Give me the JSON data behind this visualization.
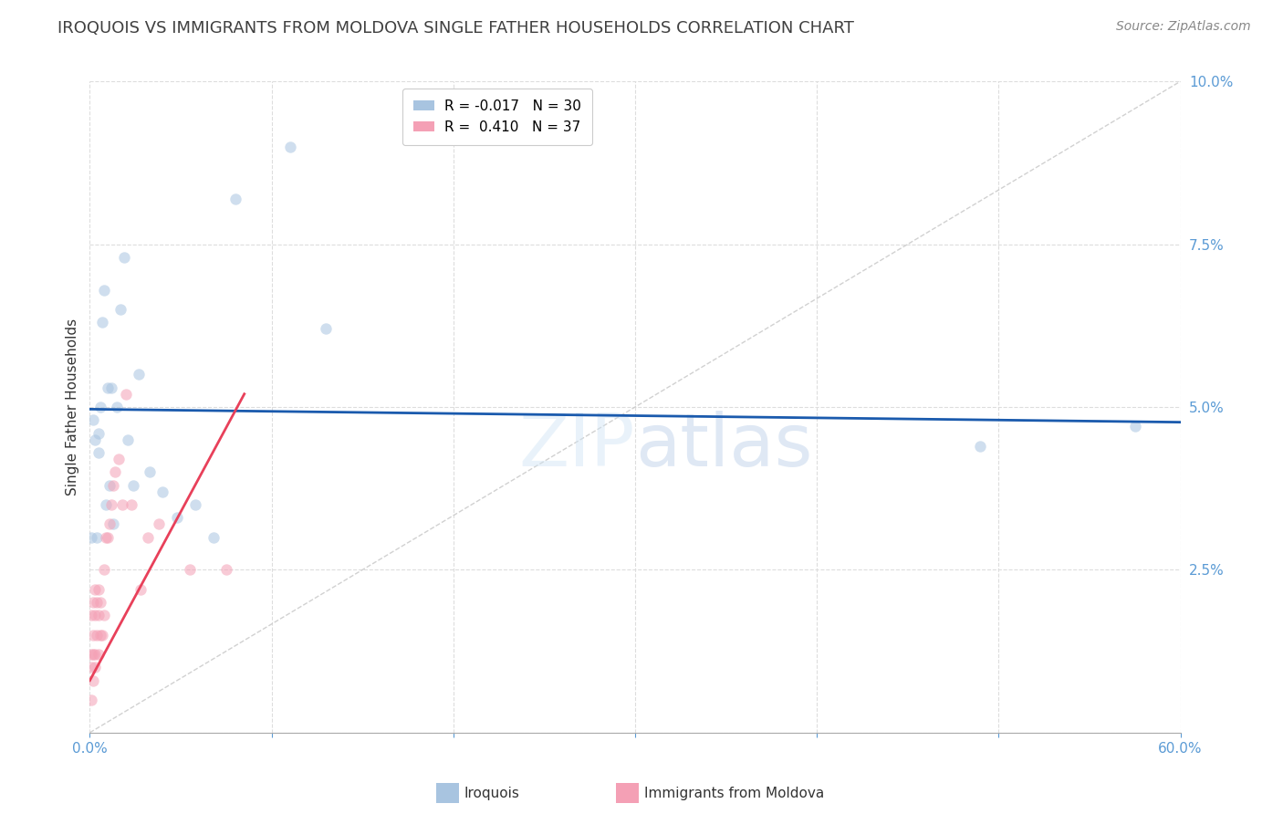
{
  "title": "IROQUOIS VS IMMIGRANTS FROM MOLDOVA SINGLE FATHER HOUSEHOLDS CORRELATION CHART",
  "source": "Source: ZipAtlas.com",
  "ylabel": "Single Father Households",
  "xlim": [
    0.0,
    0.6
  ],
  "ylim": [
    0.0,
    0.1
  ],
  "yticks": [
    0.0,
    0.025,
    0.05,
    0.075,
    0.1
  ],
  "ytick_labels": [
    "",
    "2.5%",
    "5.0%",
    "7.5%",
    "10.0%"
  ],
  "xticks": [
    0.0,
    0.1,
    0.2,
    0.3,
    0.4,
    0.5,
    0.6
  ],
  "xtick_labels": [
    "0.0%",
    "",
    "",
    "",
    "",
    "",
    "60.0%"
  ],
  "legend_iroquois": "Iroquois",
  "legend_moldova": "Immigrants from Moldova",
  "R_iroquois": -0.017,
  "N_iroquois": 30,
  "R_moldova": 0.41,
  "N_moldova": 37,
  "iroquois_color": "#a8c4e0",
  "moldova_color": "#f4a0b5",
  "iroquois_line_color": "#1a5aad",
  "moldova_line_color": "#e8405a",
  "diagonal_color": "#cccccc",
  "background_color": "#ffffff",
  "grid_color": "#dddddd",
  "axis_label_color": "#5b9bd5",
  "title_color": "#404040",
  "iroquois_x": [
    0.001,
    0.002,
    0.003,
    0.004,
    0.005,
    0.005,
    0.006,
    0.007,
    0.008,
    0.009,
    0.01,
    0.011,
    0.012,
    0.013,
    0.015,
    0.017,
    0.019,
    0.021,
    0.024,
    0.027,
    0.033,
    0.04,
    0.048,
    0.058,
    0.068,
    0.08,
    0.11,
    0.13,
    0.49,
    0.575
  ],
  "iroquois_y": [
    0.03,
    0.048,
    0.045,
    0.03,
    0.046,
    0.043,
    0.05,
    0.063,
    0.068,
    0.035,
    0.053,
    0.038,
    0.053,
    0.032,
    0.05,
    0.065,
    0.073,
    0.045,
    0.038,
    0.055,
    0.04,
    0.037,
    0.033,
    0.035,
    0.03,
    0.082,
    0.09,
    0.062,
    0.044,
    0.047
  ],
  "moldova_x": [
    0.001,
    0.001,
    0.001,
    0.001,
    0.002,
    0.002,
    0.002,
    0.002,
    0.003,
    0.003,
    0.003,
    0.003,
    0.004,
    0.004,
    0.005,
    0.005,
    0.005,
    0.006,
    0.006,
    0.007,
    0.008,
    0.008,
    0.009,
    0.01,
    0.011,
    0.012,
    0.013,
    0.014,
    0.016,
    0.018,
    0.02,
    0.023,
    0.028,
    0.032,
    0.038,
    0.055,
    0.075
  ],
  "moldova_y": [
    0.005,
    0.01,
    0.012,
    0.018,
    0.008,
    0.012,
    0.015,
    0.02,
    0.01,
    0.012,
    0.018,
    0.022,
    0.015,
    0.02,
    0.012,
    0.018,
    0.022,
    0.015,
    0.02,
    0.015,
    0.018,
    0.025,
    0.03,
    0.03,
    0.032,
    0.035,
    0.038,
    0.04,
    0.042,
    0.035,
    0.052,
    0.035,
    0.022,
    0.03,
    0.032,
    0.025,
    0.025
  ],
  "marker_size": 80,
  "marker_alpha": 0.55,
  "title_fontsize": 13,
  "axis_fontsize": 11,
  "tick_fontsize": 11,
  "legend_fontsize": 11,
  "source_fontsize": 10
}
